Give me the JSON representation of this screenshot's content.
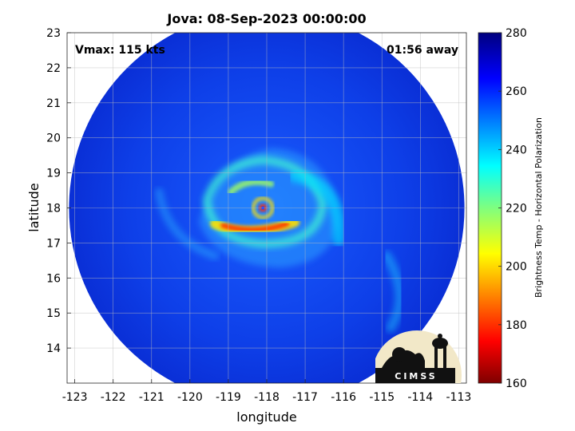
{
  "title": "Jova: 08-Sep-2023 00:00:00",
  "annotations": {
    "vmax": "Vmax: 115 kts",
    "time_away": "01:56 away"
  },
  "logo_text": "CIMSS",
  "chart_data": {
    "type": "heatmap",
    "xlabel": "longitude",
    "ylabel": "latitude",
    "xlim": [
      -123.2,
      -112.8
    ],
    "ylim": [
      13.0,
      23.0
    ],
    "xticks": [
      "-123",
      "-122",
      "-121",
      "-120",
      "-119",
      "-118",
      "-117",
      "-116",
      "-115",
      "-114",
      "-113"
    ],
    "xtick_values": [
      -123,
      -122,
      -121,
      -120,
      -119,
      -118,
      -117,
      -116,
      -115,
      -114,
      -113
    ],
    "yticks": [
      "14",
      "15",
      "16",
      "17",
      "18",
      "19",
      "20",
      "21",
      "22",
      "23"
    ],
    "ytick_values": [
      14,
      15,
      16,
      17,
      18,
      19,
      20,
      21,
      22,
      23
    ],
    "grid": true,
    "swath": {
      "center": [
        -118.0,
        18.0
      ],
      "radius_deg_lon": 5.15
    },
    "storm_eye": [
      -118.1,
      18.0
    ],
    "colorbar": {
      "label": "Brightness Temp - Horizontal Polarization",
      "range": [
        160,
        280
      ],
      "ticks": [
        "160",
        "180",
        "200",
        "220",
        "240",
        "260",
        "280"
      ],
      "tick_values": [
        160,
        180,
        200,
        220,
        240,
        260,
        280
      ],
      "colormap": "jet"
    }
  }
}
